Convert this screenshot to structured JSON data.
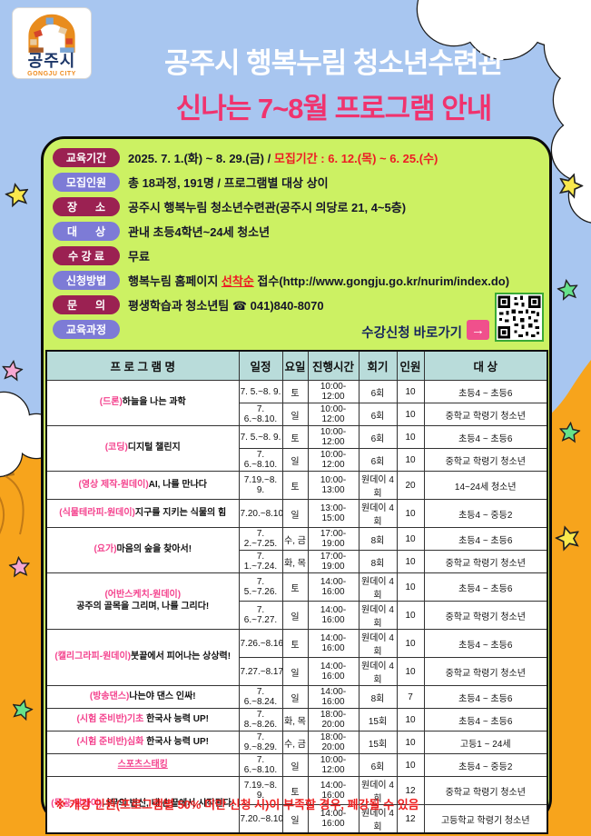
{
  "logo": {
    "korean": "공주시",
    "english": "GONGJU CITY"
  },
  "header": {
    "title_line1": "공주시 행복누림 청소년수련관",
    "title_line2": "신나는 7~8월 프로그램 안내"
  },
  "info": {
    "rows": [
      {
        "label": "교육기간",
        "text_main": "2025. 7. 1.(화) ~ 8. 29.(금) / ",
        "text_red": "모집기간 : 6. 12.(목) ~ 6. 25.(수)"
      },
      {
        "label": "모집인원",
        "text": "총 18과정, 191명 / 프로그램별 대상 상이"
      },
      {
        "label": "장      소",
        "text": "공주시 행복누림 청소년수련관(공주시 의당로 21, 4~5층)"
      },
      {
        "label": "대      상",
        "text": "관내 초등4학년~24세 청소년"
      },
      {
        "label": "수 강 료",
        "text": "무료"
      },
      {
        "label": "신청방법",
        "pre": "행복누림 홈페이지 ",
        "em": "선착순",
        "post": " 접수(http://www.gongju.go.kr/nurim/index.do)"
      },
      {
        "label": "문      의",
        "text": "평생학습과 청소년팀 ☎ 041)840-8070"
      },
      {
        "label": "교육과정",
        "text": ""
      }
    ],
    "cta": {
      "label": "수강신청 바로가기",
      "arrow": "→"
    }
  },
  "table": {
    "headers": [
      "프 로 그 램 명",
      "일정",
      "요일",
      "진행시간",
      "회기",
      "인원",
      "대 상"
    ],
    "programs": [
      {
        "prefix": "(드론)",
        "title": "하늘을 나는 과학",
        "sessions": [
          {
            "dates": "7. 5.~8. 9.",
            "day": "토",
            "time": "10:00-12:00",
            "count": "6회",
            "cap": "10",
            "target": "초등4 ~ 초등6"
          },
          {
            "dates": "7. 6.~8.10.",
            "day": "일",
            "time": "10:00-12:00",
            "count": "6회",
            "cap": "10",
            "target": "중학교 학령기 청소년"
          }
        ]
      },
      {
        "prefix": "(코딩)",
        "title": "디지털 챌린지",
        "sessions": [
          {
            "dates": "7. 5.~8. 9.",
            "day": "토",
            "time": "10:00-12:00",
            "count": "6회",
            "cap": "10",
            "target": "초등4 ~ 초등6"
          },
          {
            "dates": "7. 6.~8.10.",
            "day": "일",
            "time": "10:00-12:00",
            "count": "6회",
            "cap": "10",
            "target": "중학교 학령기 청소년"
          }
        ]
      },
      {
        "prefix": "(영상 제작-원데이)",
        "title": "AI, 나를 만나다",
        "sessions": [
          {
            "dates": "7.19.~8. 9.",
            "day": "토",
            "time": "10:00-13:00",
            "count": "원데이 4회",
            "cap": "20",
            "target": "14~24세 청소년"
          }
        ]
      },
      {
        "prefix": "(식물테라피-원데이)",
        "title": "지구를 지키는 식물의 힘",
        "sessions": [
          {
            "dates": "7.20.~8.10.",
            "day": "일",
            "time": "13:00-15:00",
            "count": "원데이 4회",
            "cap": "10",
            "target": "초등4 ~ 중등2"
          }
        ]
      },
      {
        "prefix": "(요가)",
        "title": "마음의 숲을 찾아서!",
        "sessions": [
          {
            "dates": "7. 2.~7.25.",
            "day": "수, 금",
            "time": "17:00-19:00",
            "count": "8회",
            "cap": "10",
            "target": "초등4 ~ 초등6"
          },
          {
            "dates": "7. 1.~7.24.",
            "day": "화, 목",
            "time": "17:00-19:00",
            "count": "8회",
            "cap": "10",
            "target": "중학교 학령기 청소년"
          }
        ]
      },
      {
        "prefix": "(어반스케치-원데이)",
        "title": "공주의 골목을 그리며, 나를 그리다!",
        "two_line": true,
        "sessions": [
          {
            "dates": "7. 5.~7.26.",
            "day": "토",
            "time": "14:00-16:00",
            "count": "원데이 4회",
            "cap": "10",
            "target": "초등4 ~ 초등6"
          },
          {
            "dates": "7. 6.~7.27.",
            "day": "일",
            "time": "14:00-16:00",
            "count": "원데이 4회",
            "cap": "10",
            "target": "중학교 학령기 청소년"
          }
        ]
      },
      {
        "prefix": "(캘리그라피-원데이)",
        "title": "붓끝에서 피어나는 상상력!",
        "sessions": [
          {
            "dates": "7.26.~8.16.",
            "day": "토",
            "time": "14:00-16:00",
            "count": "원데이 4회",
            "cap": "10",
            "target": "초등4 ~ 초등6"
          },
          {
            "dates": "7.27.~8.17.",
            "day": "일",
            "time": "14:00-16:00",
            "count": "원데이 4회",
            "cap": "10",
            "target": "중학교 학령기 청소년"
          }
        ]
      },
      {
        "prefix": "(방송댄스)",
        "title": "나는야 댄스 인싸!",
        "sessions": [
          {
            "dates": "7. 6.~8.24.",
            "day": "일",
            "time": "14:00-16:00",
            "count": "8회",
            "cap": "7",
            "target": "초등4 ~ 초등6"
          }
        ]
      },
      {
        "prefix": "(시험 준비반)기초",
        "title": " 한국사 능력 UP!",
        "sessions": [
          {
            "dates": "7. 8.~8.26.",
            "day": "화, 목",
            "time": "18:00-20:00",
            "count": "15회",
            "cap": "10",
            "target": "초등4 ~ 초등6"
          }
        ]
      },
      {
        "prefix": "(시험 준비반)심화",
        "title": " 한국사 능력 UP!",
        "sessions": [
          {
            "dates": "7. 9.~8.29.",
            "day": "수, 금",
            "time": "18:00-20:00",
            "count": "15회",
            "cap": "10",
            "target": "고등1 ~ 24세"
          }
        ]
      },
      {
        "prefix": "스포츠스태킹",
        "title": "",
        "underline": true,
        "sessions": [
          {
            "dates": "7. 6.~8.10.",
            "day": "일",
            "time": "10:00-12:00",
            "count": "6회",
            "cap": "10",
            "target": "초등4 ~ 중등2"
          }
        ]
      },
      {
        "prefix": "(목공-원데이)",
        "title": "나무의 변신, 내 손끝에서 시작된다!",
        "sessions": [
          {
            "dates": "7.19.~8. 9.",
            "day": "토",
            "time": "14:00-16:00",
            "count": "원데이 4회",
            "cap": "12",
            "target": "중학교 학령기 청소년"
          },
          {
            "dates": "7.20.~8.10.",
            "day": "일",
            "time": "14:00-16:00",
            "count": "원데이 4회",
            "cap": "12",
            "target": "고등학교 학령기 청소년"
          }
        ]
      }
    ]
  },
  "footer": {
    "note": "※ 개강 인원(프로그램별 50% 미만 신청 시)이 부족할 경우, 폐강될 수 있음"
  },
  "colors": {
    "sky": "#a8c6f0",
    "ground": "#f7a41c",
    "card": "#ccf163",
    "pill_maroon": "#9b2152",
    "pill_purple": "#7d7bd6",
    "title_pink": "#f0336e",
    "accent_red": "#ed1c24",
    "table_header": "#b9dcda",
    "program_pink": "#f4438e",
    "cta_navy": "#17265c"
  }
}
